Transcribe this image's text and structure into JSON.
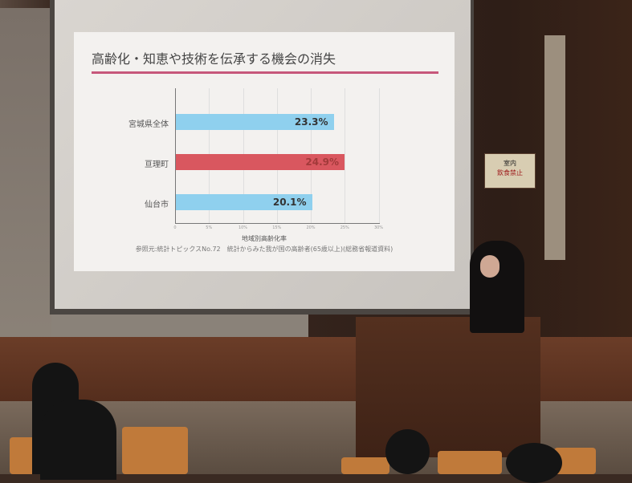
{
  "slide": {
    "title": "高齢化・知恵や技術を伝承する機会の消失",
    "source": "参照元:統計トピックスNo.72　統計からみた我が国の高齢者(65歳以上)(総務省報道資料)"
  },
  "chart_data": {
    "type": "bar",
    "orientation": "horizontal",
    "categories": [
      "宮城県全体",
      "亘理町",
      "仙台市"
    ],
    "values": [
      23.3,
      24.9,
      20.1
    ],
    "value_labels": [
      "23.3%",
      "24.9%",
      "20.1%"
    ],
    "colors": [
      "#8fd0ee",
      "#d9575f",
      "#8fd0ee"
    ],
    "xlabel": "地域別高齢化率",
    "xlim": [
      0,
      30
    ],
    "ticks": [
      "0",
      "5%",
      "10%",
      "15%",
      "20%",
      "25%",
      "30%"
    ],
    "grid": true
  },
  "sign": {
    "line1": "室内",
    "line2": "飲食禁止"
  }
}
